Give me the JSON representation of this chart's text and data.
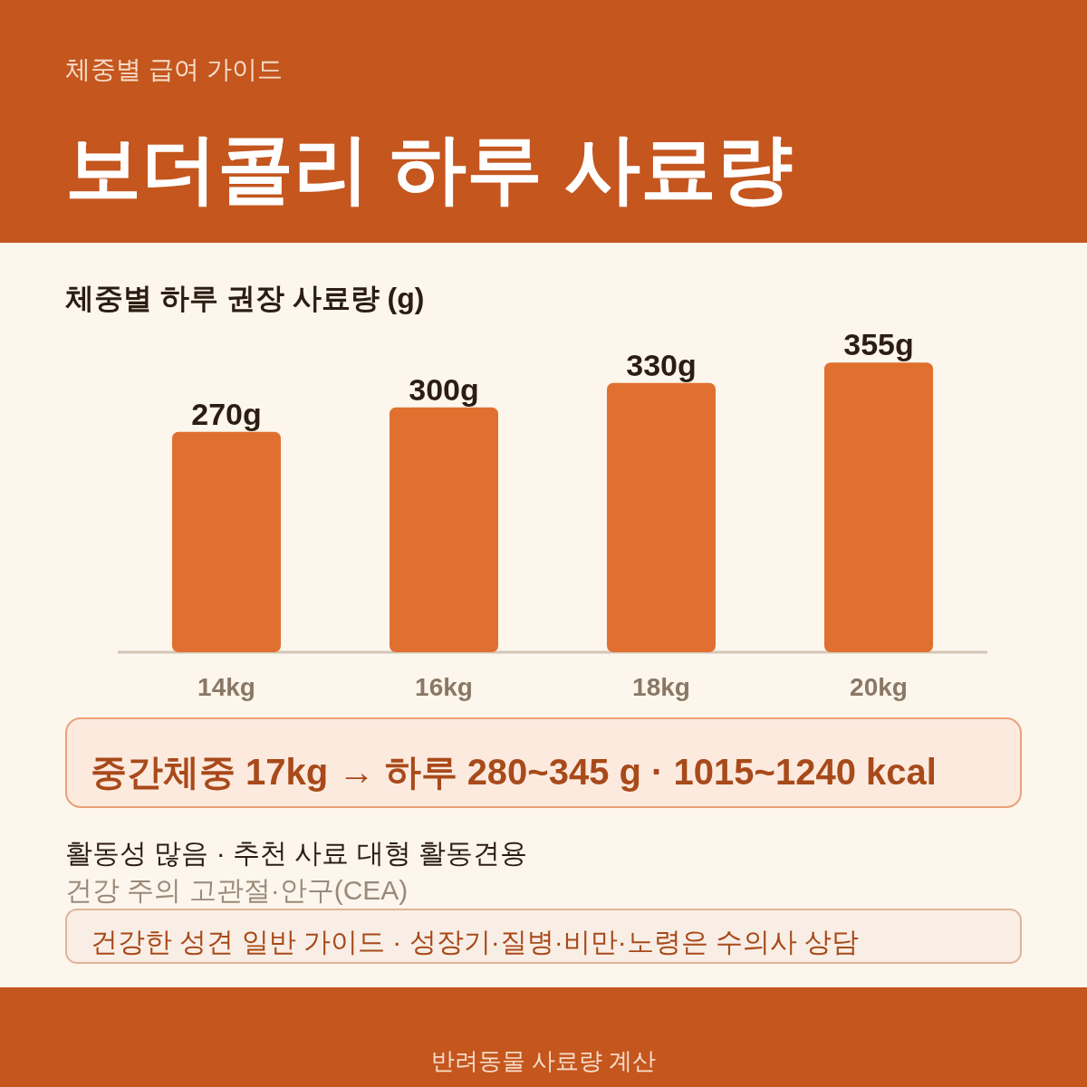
{
  "chart_data": {
    "type": "bar",
    "title": "보더콜리 하루 사료량",
    "subtitle": "체중별 급여 가이드",
    "categories": [
      "14kg",
      "16kg",
      "18kg",
      "20kg"
    ],
    "values": [
      270,
      300,
      330,
      355
    ],
    "value_labels": [
      "270g",
      "300g",
      "330g",
      "355g"
    ],
    "color": "#e07030",
    "annotations": [
      "체중별 하루 권장 사료량 (g)",
      "중간체중 17kg  →  하루 280~345 g · 1015~1240 kcal",
      "활동성 많음   ·   추천 사료 대형 활동견용",
      "건강 주의 고관절·안구(CEA)",
      "건강한 성견 일반 가이드 · 성장기·질병·비만·노령은 수의사 상담",
      "반려동물 사료량 계산"
    ]
  }
}
